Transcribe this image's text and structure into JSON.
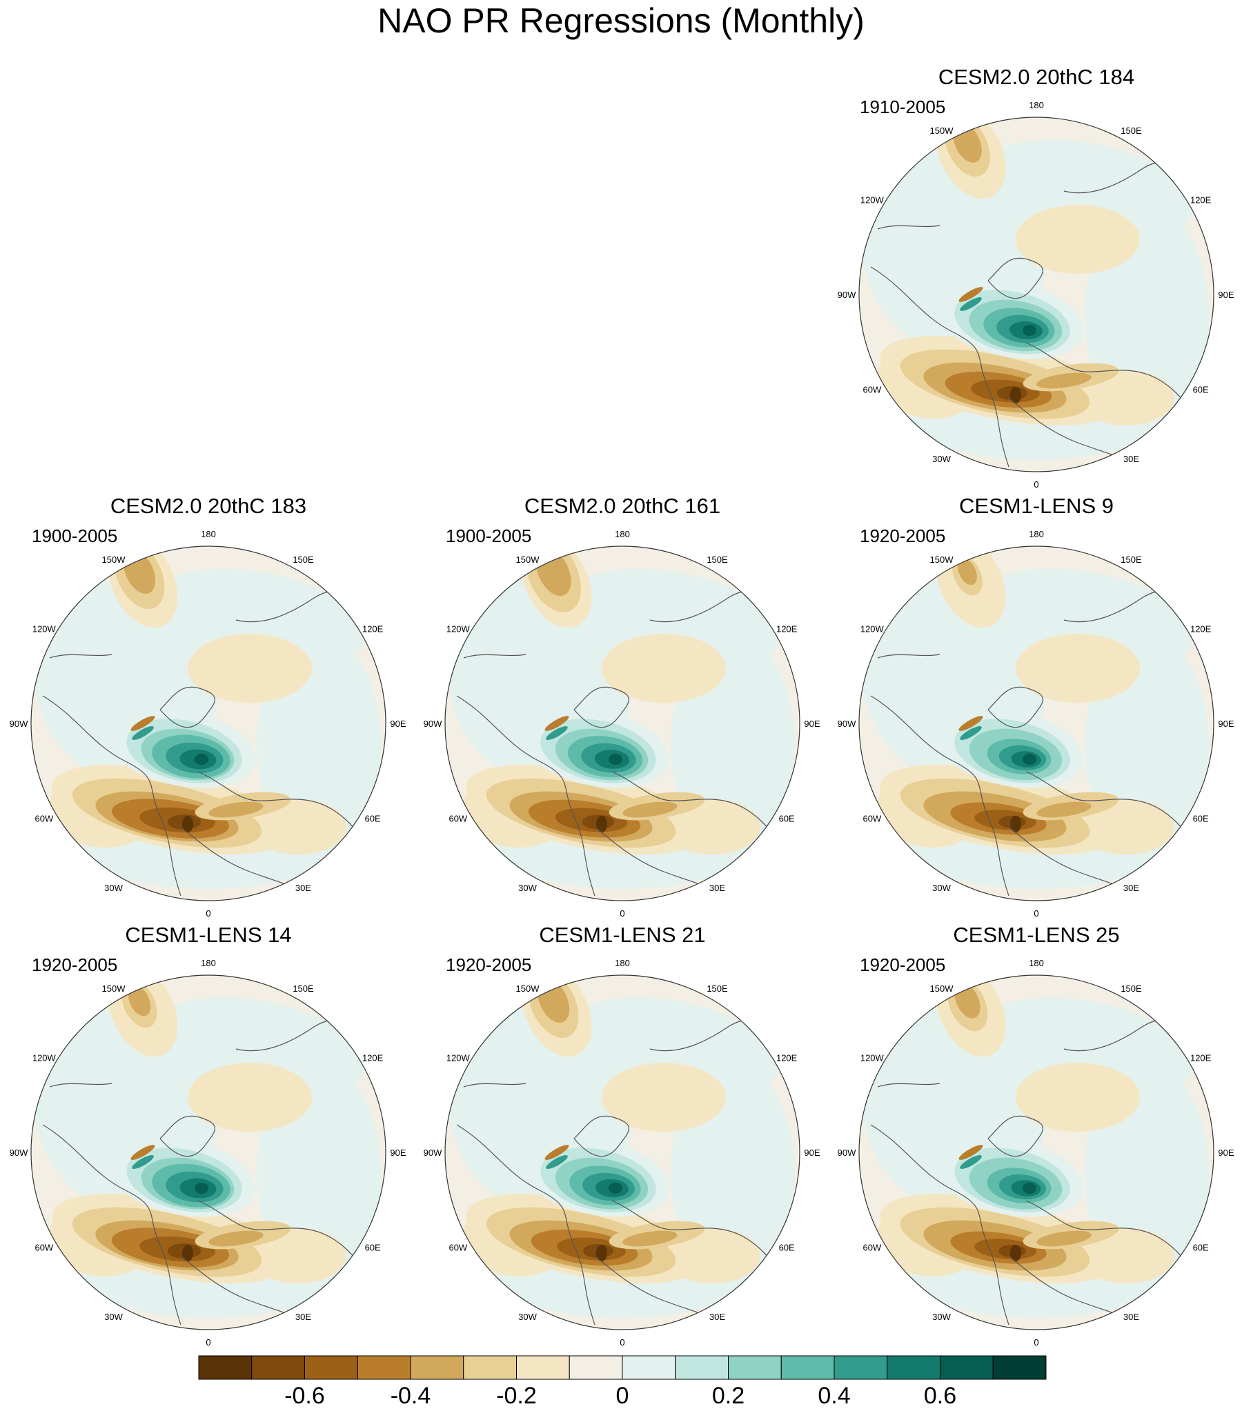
{
  "title": "NAO PR Regressions (Monthly)",
  "panels": [
    {
      "title": "CESM2.0 20thC 184",
      "period": "1910-2005"
    },
    {
      "title": "CESM2.0 20thC 183",
      "period": "1900-2005"
    },
    {
      "title": "CESM2.0 20thC 161",
      "period": "1900-2005"
    },
    {
      "title": "CESM1-LENS 9",
      "period": "1920-2005"
    },
    {
      "title": "CESM1-LENS 14",
      "period": "1920-2005"
    },
    {
      "title": "CESM1-LENS 21",
      "period": "1920-2005"
    },
    {
      "title": "CESM1-LENS 25",
      "period": "1920-2005"
    }
  ],
  "longitude_labels": [
    "180",
    "150E",
    "120E",
    "90E",
    "60E",
    "30E",
    "0",
    "30W",
    "60W",
    "90W",
    "120W",
    "150W"
  ],
  "colorbar": {
    "colors": [
      "#5a3307",
      "#7f4a0e",
      "#9c6117",
      "#b97d2c",
      "#d2a85c",
      "#e8cf95",
      "#f5e6c3",
      "#f4efe4",
      "#e3f1ef",
      "#c0e6df",
      "#90d3c5",
      "#5fbba9",
      "#319b8d",
      "#137a6e",
      "#055e52",
      "#013e33"
    ],
    "tick_labels": [
      "-0.6",
      "-0.4",
      "-0.2",
      "0",
      "0.2",
      "0.4",
      "0.6"
    ]
  }
}
